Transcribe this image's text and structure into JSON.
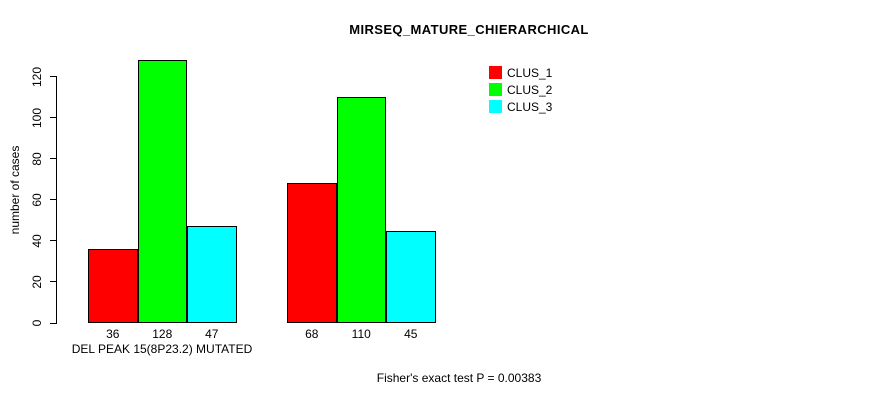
{
  "title": "MIRSEQ_MATURE_CHIERARCHICAL",
  "chart_data": {
    "type": "bar",
    "title": "MIRSEQ_MATURE_CHIERARCHICAL",
    "ylabel": "number of cases",
    "xlabel": "",
    "ylim": [
      0,
      130
    ],
    "yticks": [
      0,
      20,
      40,
      60,
      80,
      100,
      120
    ],
    "grid": false,
    "legend_position": "top-right",
    "categories": [
      "DEL PEAK 15(8P23.2) MUTATED",
      ""
    ],
    "series": [
      {
        "name": "CLUS_1",
        "color": "#ff0000",
        "values": [
          36,
          68
        ]
      },
      {
        "name": "CLUS_2",
        "color": "#00ff00",
        "values": [
          128,
          110
        ]
      },
      {
        "name": "CLUS_3",
        "color": "#00ffff",
        "values": [
          47,
          45
        ]
      }
    ],
    "bar_value_labels_shown": true,
    "footer": "Fisher's exact test P = 0.00383",
    "bar_border_color": "#000000",
    "background_color": "#ffffff"
  }
}
